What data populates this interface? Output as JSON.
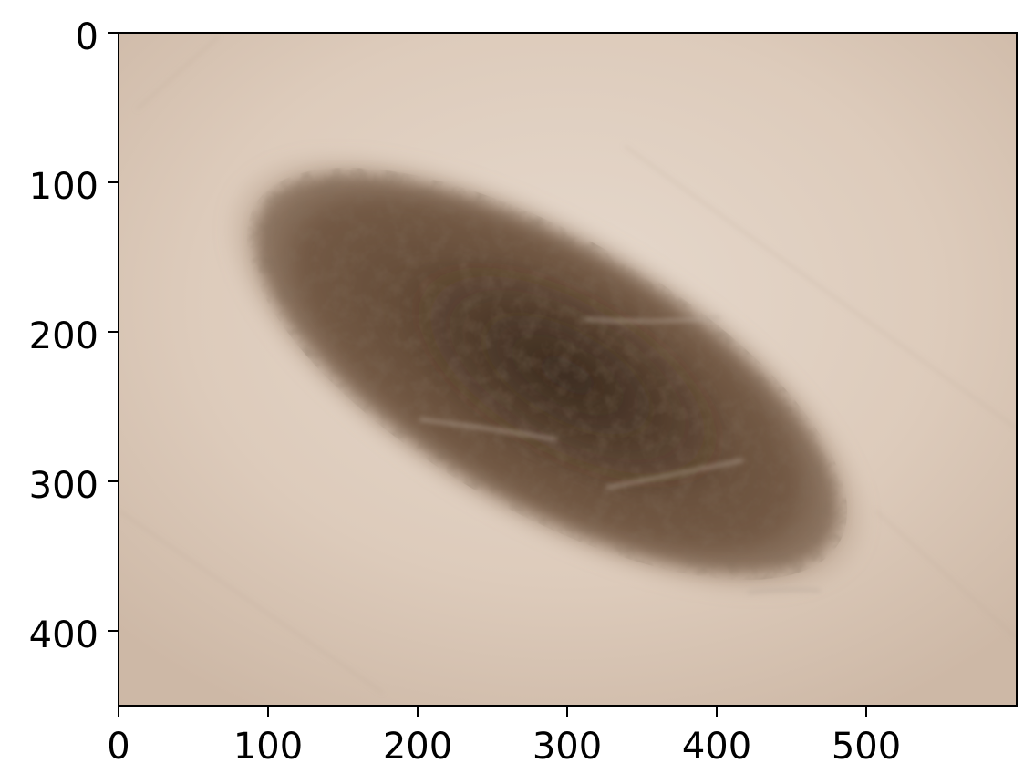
{
  "image": {
    "description_name": "dermoscopy-lesion-image",
    "skin_color": "#e2d3c6",
    "lesion_color": "#5b4532",
    "lesion_core_color": "#3f2f22"
  },
  "axes": {
    "x": {
      "ticks": [
        0,
        100,
        200,
        300,
        400,
        500
      ],
      "range": [
        0,
        600
      ]
    },
    "y": {
      "ticks": [
        0,
        100,
        200,
        300,
        400
      ],
      "range": [
        0,
        450
      ]
    }
  }
}
